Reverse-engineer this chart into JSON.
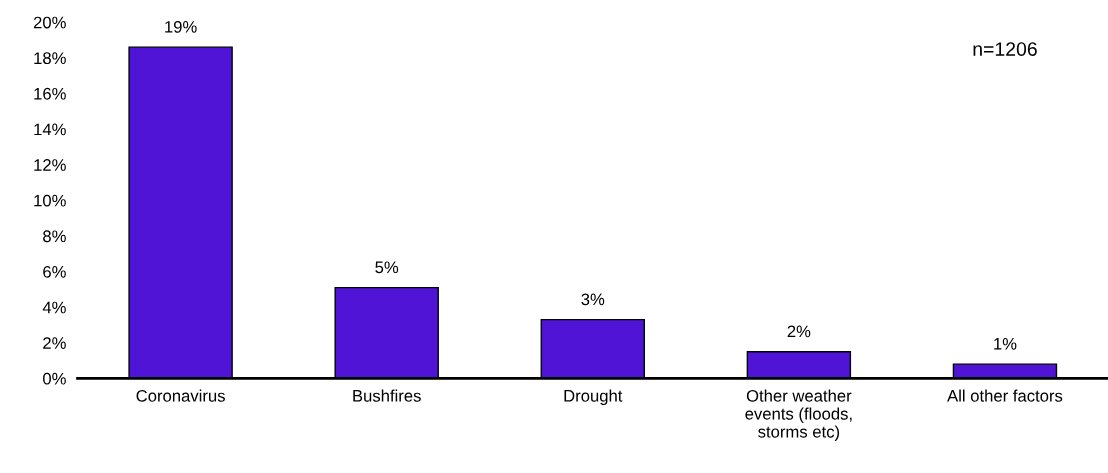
{
  "chart_data": {
    "type": "bar",
    "categories": [
      "Coronavirus",
      "Bushfires",
      "Drought",
      "Other weather\nevents (floods,\nstorms etc)",
      "All other factors"
    ],
    "values": [
      18.6,
      5.1,
      3.3,
      1.5,
      0.8
    ],
    "value_labels": [
      "19%",
      "5%",
      "3%",
      "2%",
      "1%"
    ],
    "color": "#4f14d6",
    "ylim": [
      0,
      20
    ],
    "yticks": [
      {
        "value": 0,
        "label": "0%"
      },
      {
        "value": 2,
        "label": "2%"
      },
      {
        "value": 4,
        "label": "4%"
      },
      {
        "value": 6,
        "label": "6%"
      },
      {
        "value": 8,
        "label": "8%"
      },
      {
        "value": 10,
        "label": "10%"
      },
      {
        "value": 12,
        "label": "12%"
      },
      {
        "value": 14,
        "label": "14%"
      },
      {
        "value": 16,
        "label": "16%"
      },
      {
        "value": 18,
        "label": "18%"
      },
      {
        "value": 20,
        "label": "20%"
      }
    ],
    "annotations": [
      "n=1206"
    ],
    "grid": false,
    "legend": false
  }
}
